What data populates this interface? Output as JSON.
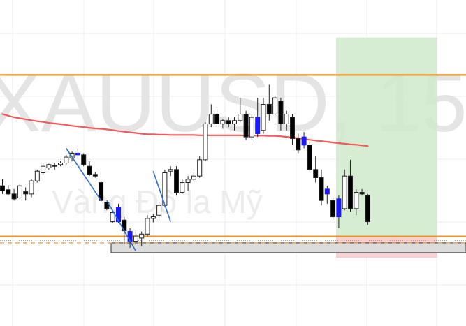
{
  "watermark": {
    "symbol": "XAUUSD, 15",
    "description": "Vàng Đô la Mỹ"
  },
  "colors": {
    "background": "#ffffff",
    "grid": "#eeeeee",
    "bull_body": "#ffffff",
    "bear_body": "#000000",
    "highlight_body": "#1a1aff",
    "wick": "#222222",
    "level_line": "#f0921c",
    "ma_line": "#f05a5a",
    "trend_line": "#2f6fd1",
    "profit_zone": "#cfeacb",
    "loss_zone": "#f7c9c9",
    "support_zone_fill": "#dcdcdc",
    "support_zone_border": "#333333"
  },
  "chart_data": {
    "type": "candlestick",
    "y_range": [
      0,
      1000
    ],
    "candles": [
      {
        "o": 430,
        "h": 450,
        "l": 405,
        "c": 415
      },
      {
        "o": 418,
        "h": 432,
        "l": 400,
        "c": 405
      },
      {
        "o": 405,
        "h": 420,
        "l": 385,
        "c": 390
      },
      {
        "o": 393,
        "h": 435,
        "l": 385,
        "c": 430
      },
      {
        "o": 412,
        "h": 425,
        "l": 385,
        "c": 405
      },
      {
        "o": 405,
        "h": 450,
        "l": 395,
        "c": 445
      },
      {
        "o": 445,
        "h": 480,
        "l": 440,
        "c": 475
      },
      {
        "o": 470,
        "h": 500,
        "l": 465,
        "c": 490
      },
      {
        "o": 485,
        "h": 498,
        "l": 480,
        "c": 495
      },
      {
        "o": 490,
        "h": 500,
        "l": 480,
        "c": 492
      },
      {
        "o": 495,
        "h": 505,
        "l": 490,
        "c": 500
      },
      {
        "o": 500,
        "h": 525,
        "l": 495,
        "c": 518
      },
      {
        "o": 515,
        "h": 535,
        "l": 505,
        "c": 530
      },
      {
        "o": 530,
        "h": 545,
        "l": 520,
        "c": 525,
        "hl": true
      },
      {
        "o": 525,
        "h": 530,
        "l": 490,
        "c": 495
      },
      {
        "o": 490,
        "h": 505,
        "l": 460,
        "c": 465
      },
      {
        "o": 465,
        "h": 472,
        "l": 455,
        "c": 460
      },
      {
        "o": 440,
        "h": 445,
        "l": 380,
        "c": 385
      },
      {
        "o": 380,
        "h": 380,
        "l": 355,
        "c": 360
      },
      {
        "o": 320,
        "h": 355,
        "l": 315,
        "c": 348
      },
      {
        "o": 365,
        "h": 375,
        "l": 315,
        "c": 320,
        "hl": true
      },
      {
        "o": 325,
        "h": 335,
        "l": 250,
        "c": 292
      },
      {
        "o": 290,
        "h": 300,
        "l": 240,
        "c": 260,
        "hl": true
      },
      {
        "o": 260,
        "h": 295,
        "l": 252,
        "c": 276
      },
      {
        "o": 270,
        "h": 290,
        "l": 245,
        "c": 282
      },
      {
        "o": 282,
        "h": 340,
        "l": 275,
        "c": 330
      },
      {
        "o": 330,
        "h": 345,
        "l": 318,
        "c": 335
      },
      {
        "o": 340,
        "h": 380,
        "l": 330,
        "c": 370
      },
      {
        "o": 370,
        "h": 480,
        "l": 365,
        "c": 470
      },
      {
        "o": 475,
        "h": 490,
        "l": 460,
        "c": 480
      },
      {
        "o": 480,
        "h": 490,
        "l": 400,
        "c": 410
      },
      {
        "o": 410,
        "h": 450,
        "l": 405,
        "c": 440
      },
      {
        "o": 440,
        "h": 460,
        "l": 415,
        "c": 450
      },
      {
        "o": 450,
        "h": 470,
        "l": 445,
        "c": 460
      },
      {
        "o": 460,
        "h": 520,
        "l": 455,
        "c": 510
      },
      {
        "o": 510,
        "h": 625,
        "l": 505,
        "c": 620
      },
      {
        "o": 620,
        "h": 680,
        "l": 610,
        "c": 650
      },
      {
        "o": 650,
        "h": 665,
        "l": 620,
        "c": 620
      },
      {
        "o": 620,
        "h": 635,
        "l": 605,
        "c": 630
      },
      {
        "o": 630,
        "h": 640,
        "l": 610,
        "c": 620
      },
      {
        "o": 620,
        "h": 640,
        "l": 600,
        "c": 630
      },
      {
        "o": 630,
        "h": 700,
        "l": 625,
        "c": 650
      },
      {
        "o": 650,
        "h": 660,
        "l": 570,
        "c": 580
      },
      {
        "o": 580,
        "h": 650,
        "l": 570,
        "c": 640
      },
      {
        "o": 640,
        "h": 700,
        "l": 580,
        "c": 590,
        "hl": true
      },
      {
        "o": 600,
        "h": 700,
        "l": 590,
        "c": 680
      },
      {
        "o": 680,
        "h": 740,
        "l": 630,
        "c": 650
      },
      {
        "o": 650,
        "h": 705,
        "l": 640,
        "c": 700
      },
      {
        "o": 690,
        "h": 700,
        "l": 600,
        "c": 620
      },
      {
        "o": 620,
        "h": 660,
        "l": 600,
        "c": 650
      },
      {
        "o": 640,
        "h": 650,
        "l": 555,
        "c": 575
      },
      {
        "o": 575,
        "h": 590,
        "l": 530,
        "c": 540
      },
      {
        "o": 580,
        "h": 595,
        "l": 545,
        "c": 555,
        "hl": true
      },
      {
        "o": 555,
        "h": 565,
        "l": 470,
        "c": 480
      },
      {
        "o": 480,
        "h": 520,
        "l": 440,
        "c": 455
      },
      {
        "o": 455,
        "h": 480,
        "l": 370,
        "c": 385
      },
      {
        "o": 420,
        "h": 430,
        "l": 375,
        "c": 405,
        "hl": true
      },
      {
        "o": 385,
        "h": 395,
        "l": 325,
        "c": 335
      },
      {
        "o": 335,
        "h": 400,
        "l": 300,
        "c": 390,
        "hl": true
      },
      {
        "o": 360,
        "h": 480,
        "l": 355,
        "c": 460
      },
      {
        "o": 460,
        "h": 510,
        "l": 350,
        "c": 360
      },
      {
        "o": 360,
        "h": 420,
        "l": 340,
        "c": 410
      },
      {
        "o": 410,
        "h": 420,
        "l": 400,
        "c": 405
      },
      {
        "o": 400,
        "h": 405,
        "l": 310,
        "c": 320
      }
    ],
    "moving_average": [
      650,
      645,
      640,
      637,
      634,
      631,
      628,
      626,
      623,
      621,
      619,
      617,
      614,
      612,
      610,
      608,
      606,
      605,
      603,
      601,
      598,
      596,
      594,
      592,
      590,
      588,
      588,
      587,
      587,
      586,
      586,
      586,
      586,
      586,
      585,
      585,
      585,
      585,
      585,
      585,
      585,
      585,
      584,
      584,
      584,
      584,
      583,
      583,
      582,
      580,
      578,
      576,
      574,
      571,
      569,
      567,
      565,
      563,
      561,
      559,
      557,
      556,
      554,
      552
    ],
    "levels": [
      {
        "value": 770,
        "style": "solid"
      },
      {
        "value": 275,
        "style": "solid"
      },
      {
        "value": 255,
        "style": "dashed"
      }
    ],
    "support_zone": {
      "from": 225,
      "to": 255
    },
    "position_tool": {
      "entry": 275,
      "target": 885,
      "stop": 210
    },
    "trend_lines": [
      [
        {
          "i": 11,
          "v": 545
        },
        {
          "i": 17,
          "v": 385
        }
      ],
      [
        {
          "i": 18,
          "v": 385
        },
        {
          "i": 23,
          "v": 230
        }
      ],
      [
        {
          "i": 26,
          "v": 475
        },
        {
          "i": 29,
          "v": 320
        }
      ]
    ]
  }
}
